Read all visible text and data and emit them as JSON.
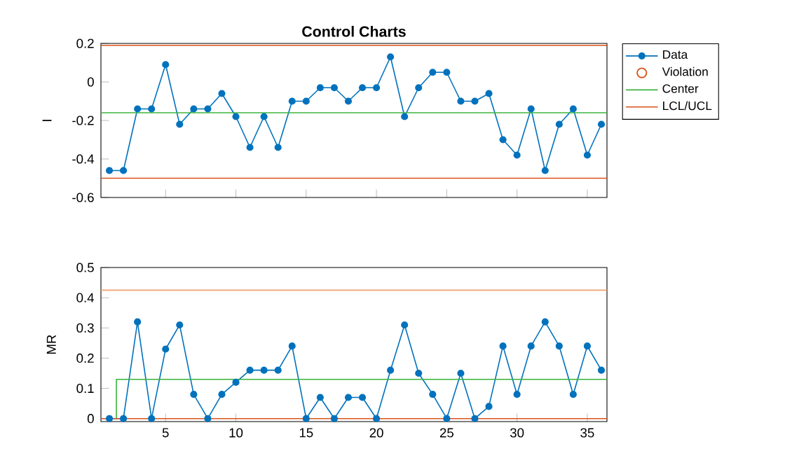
{
  "chart_data": [
    {
      "type": "line",
      "title": "Control Charts",
      "ylabel": "I",
      "x": [
        1,
        2,
        3,
        4,
        5,
        6,
        7,
        8,
        9,
        10,
        11,
        12,
        13,
        14,
        15,
        16,
        17,
        18,
        19,
        20,
        21,
        22,
        23,
        24,
        25,
        26,
        27,
        28,
        29,
        30,
        31,
        32,
        33,
        34,
        35,
        36
      ],
      "xlim": [
        0.4,
        36.4
      ],
      "xticks": [
        5,
        10,
        15,
        20,
        25,
        30,
        35
      ],
      "ylim": [
        -0.6,
        0.2
      ],
      "yticks": [
        -0.6,
        -0.4,
        -0.2,
        0,
        0.2
      ],
      "tick_labels": "y",
      "grid": false,
      "legend": "top right",
      "series": [
        {
          "name": "Data",
          "color": "#0072bd",
          "marker": "circle",
          "line_style": "solid",
          "values": [
            -0.46,
            -0.46,
            -0.14,
            -0.14,
            0.09,
            -0.22,
            -0.14,
            -0.14,
            -0.06,
            -0.18,
            -0.34,
            -0.18,
            -0.34,
            -0.1,
            -0.1,
            -0.03,
            -0.03,
            -0.1,
            -0.03,
            -0.03,
            0.13,
            -0.18,
            -0.03,
            0.05,
            0.05,
            -0.1,
            -0.1,
            -0.06,
            -0.3,
            -0.38,
            -0.14,
            -0.46,
            -0.22,
            -0.14,
            -0.38,
            -0.22
          ]
        },
        {
          "name": "Violation",
          "type": "scatter",
          "color": "#d95319",
          "marker": "circle",
          "values": [
            null,
            null,
            null,
            null,
            null,
            null,
            null,
            null,
            null,
            null,
            null,
            null,
            null,
            null,
            null,
            null,
            null,
            null,
            null,
            null,
            null,
            null,
            null,
            null,
            null,
            null,
            null,
            null,
            null,
            null,
            null,
            null,
            null,
            null,
            null,
            null
          ]
        },
        {
          "name": "Center",
          "color": "#3cb43c",
          "marker": "none",
          "line_style": "solid",
          "x": [
            0.4,
            36.4
          ],
          "values": [
            -0.16,
            -0.16
          ]
        },
        {
          "name": "LCL/UCL",
          "color": "#d95319",
          "marker": "none",
          "line_style": "solid",
          "x": [
            0.4,
            36.4
          ],
          "values": [
            -0.5,
            -0.5
          ]
        },
        {
          "color": "#d95319",
          "marker": "none",
          "line_style": "solid",
          "x": [
            0.4,
            36.4
          ],
          "values": [
            0.19,
            0.19
          ]
        }
      ]
    },
    {
      "type": "line",
      "ylabel": "MR",
      "x": [
        1,
        2,
        3,
        4,
        5,
        6,
        7,
        8,
        9,
        10,
        11,
        12,
        13,
        14,
        15,
        16,
        17,
        18,
        19,
        20,
        21,
        22,
        23,
        24,
        25,
        26,
        27,
        28,
        29,
        30,
        31,
        32,
        33,
        34,
        35,
        36
      ],
      "xlim": [
        0.4,
        36.4
      ],
      "xticks": [
        5,
        10,
        15,
        20,
        25,
        30,
        35
      ],
      "ylim": [
        -0.01,
        0.5
      ],
      "yticks": [
        0,
        0.1,
        0.2,
        0.3,
        0.4,
        0.5
      ],
      "grid": false,
      "series": [
        {
          "color": "#0072bd",
          "marker": "circle",
          "line_style": "solid",
          "values": [
            0,
            0,
            0.32,
            0,
            0.23,
            0.31,
            0.08,
            0,
            0.08,
            0.12,
            0.16,
            0.16,
            0.16,
            0.24,
            0,
            0.07,
            0,
            0.07,
            0.07,
            0,
            0.16,
            0.31,
            0.15,
            0.08,
            0,
            0.15,
            0,
            0.04,
            0.24,
            0.08,
            0.24,
            0.32,
            0.24,
            0.08,
            0.24,
            0.16
          ]
        },
        {
          "color": "#3cb43c",
          "marker": "none",
          "line_style": "solid",
          "x": [
            1.5,
            1.5,
            36.4
          ],
          "values": [
            0,
            0.13,
            0.13
          ]
        },
        {
          "color": "#d95319",
          "marker": "none",
          "line_style": "solid",
          "x": [
            0.4,
            36.4
          ],
          "values": [
            0,
            0
          ]
        },
        {
          "color": "#f0a070",
          "marker": "none",
          "line_style": "solid",
          "x": [
            0.4,
            36.4
          ],
          "values": [
            0.425,
            0.425
          ]
        }
      ]
    }
  ]
}
